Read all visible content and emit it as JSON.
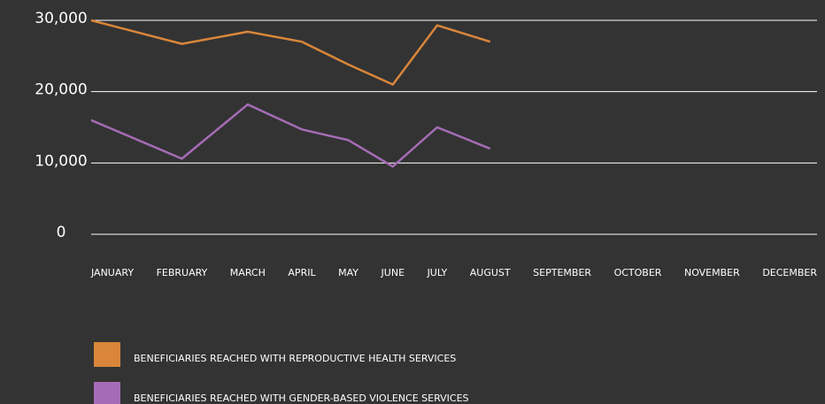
{
  "chart_data": {
    "type": "line",
    "categories": [
      "JANUARY",
      "FEBRUARY",
      "MARCH",
      "APRIL",
      "MAY",
      "JUNE",
      "JULY",
      "AUGUST",
      "SEPTEMBER",
      "OCTOBER",
      "NOVEMBER",
      "DECEMBER"
    ],
    "series": [
      {
        "name": "BENEFICIARIES REACHED WITH REPRODUCTIVE HEALTH SERVICES",
        "color": "#d9863a",
        "values": [
          30000,
          26700,
          28400,
          27000,
          23800,
          21000,
          29300,
          27000,
          null,
          null,
          null,
          null
        ]
      },
      {
        "name": "BENEFICIARIES REACHED WITH GENDER-BASED VIOLENCE SERVICES",
        "color": "#a56cb5",
        "values": [
          16000,
          10600,
          18200,
          14700,
          13200,
          9500,
          15000,
          12000,
          null,
          null,
          null,
          null
        ]
      }
    ],
    "ylim": [
      0,
      30000
    ],
    "yticks": [
      0,
      {
        "value": 10000,
        "label": "10,000"
      },
      {
        "value": 20000,
        "label": "20,000"
      },
      {
        "value": 30000,
        "label": "30,000"
      }
    ],
    "grid": true
  }
}
